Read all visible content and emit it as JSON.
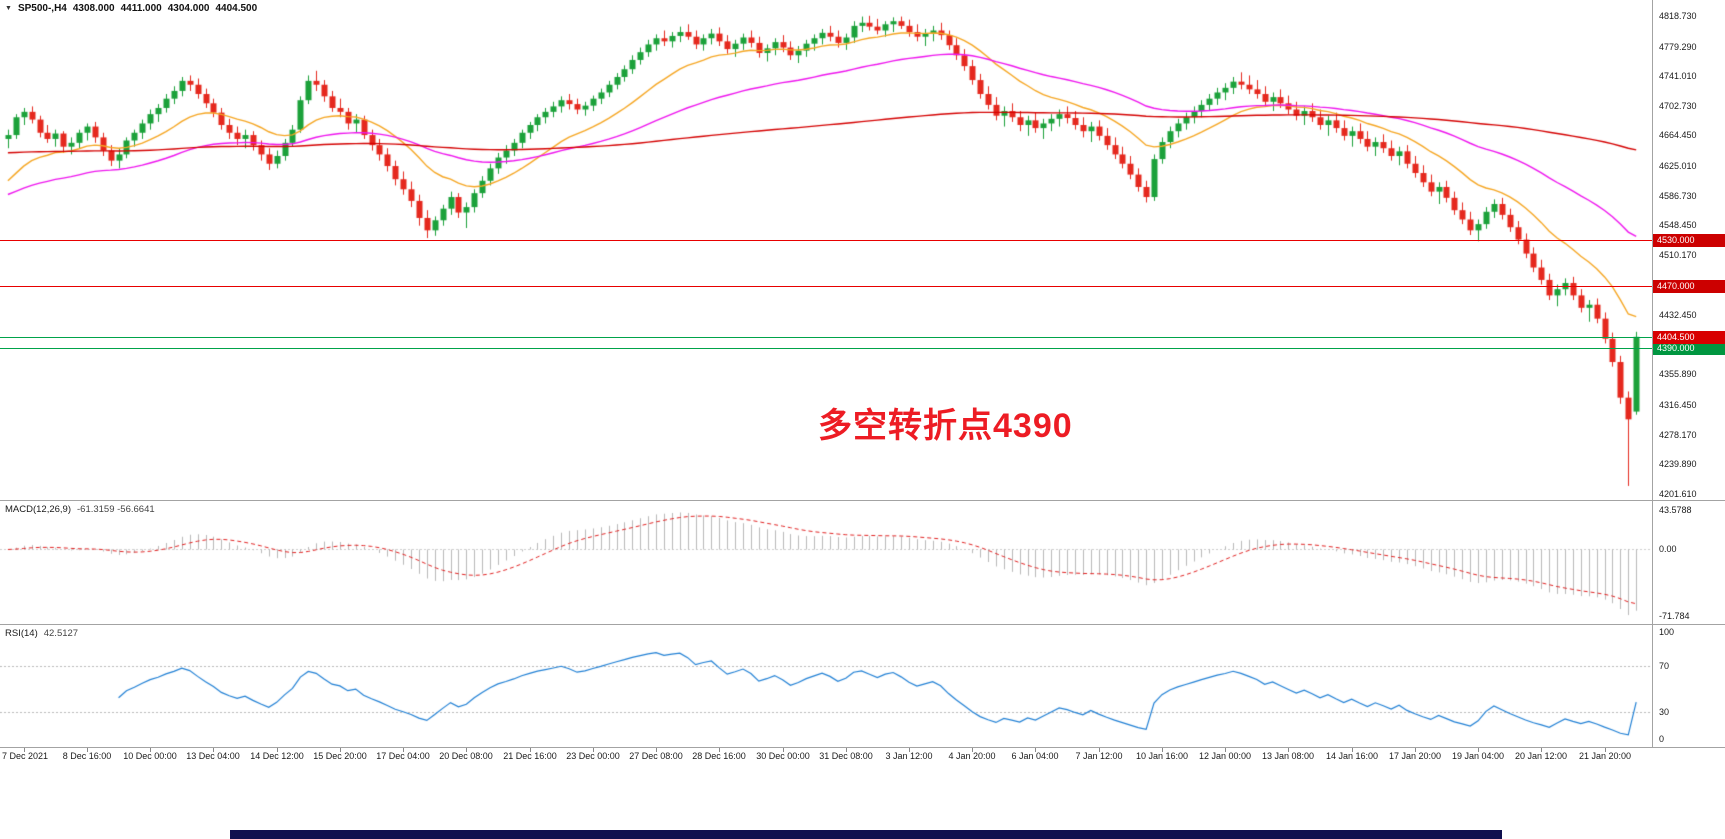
{
  "chart": {
    "title": {
      "dropdown_icon": "▼",
      "symbol_period": "SP500-,H4",
      "open": "4308.000",
      "high": "4411.000",
      "low": "4304.000",
      "close": "4404.500"
    },
    "annotation": {
      "text": "多空转折点4390",
      "color": "#ed1c24"
    },
    "colors": {
      "background": "#ffffff",
      "bull": "#1ba13a",
      "bear": "#e5281e",
      "axis_text": "#1a1a1a",
      "divider": "#a3a3a3",
      "taskbar": "#10104e"
    },
    "price_axis": {
      "labels": [
        "4818.730",
        "4779.290",
        "4741.010",
        "4702.730",
        "4664.450",
        "4625.010",
        "4586.730",
        "4548.450",
        "4510.170",
        "4432.450",
        "4355.890",
        "4316.450",
        "4278.170",
        "4239.890",
        "4201.610"
      ]
    },
    "hlines": [
      {
        "price": 4530.0,
        "label": "4530.000",
        "color": "#e80000",
        "tag_bg": "#cc0000"
      },
      {
        "price": 4470.0,
        "label": "4470.000",
        "color": "#e80000",
        "tag_bg": "#cc0000"
      },
      {
        "price": 4390.0,
        "label": "4390.000",
        "color": "#00a34a",
        "tag_bg": "#009640"
      }
    ],
    "bid_line": {
      "price": 4404.5,
      "label": "4404.500",
      "line_color": "#00a34a",
      "tag_bg": "#d80000"
    }
  },
  "chart_data": {
    "type": "candlestick",
    "symbol": "SP500-",
    "timeframe": "H4",
    "ohlc_display": {
      "open": 4308.0,
      "high": 4411.0,
      "low": 4304.0,
      "close": 4404.5
    },
    "ylim": [
      4201.61,
      4818.73
    ],
    "x_labels": [
      "7 Dec 2021",
      "8 Dec 16:00",
      "10 Dec 00:00",
      "13 Dec 04:00",
      "14 Dec 12:00",
      "15 Dec 20:00",
      "17 Dec 04:00",
      "20 Dec 08:00",
      "21 Dec 16:00",
      "23 Dec 00:00",
      "27 Dec 08:00",
      "28 Dec 16:00",
      "30 Dec 00:00",
      "31 Dec 08:00",
      "3 Jan 12:00",
      "4 Jan 20:00",
      "6 Jan 04:00",
      "7 Jan 12:00",
      "10 Jan 16:00",
      "12 Jan 00:00",
      "13 Jan 08:00",
      "14 Jan 16:00",
      "17 Jan 20:00",
      "19 Jan 04:00",
      "20 Jan 12:00",
      "21 Jan 20:00"
    ],
    "candles": [
      [
        4660,
        4672,
        4648,
        4665
      ],
      [
        4665,
        4692,
        4660,
        4688
      ],
      [
        4688,
        4700,
        4678,
        4695
      ],
      [
        4695,
        4702,
        4680,
        4685
      ],
      [
        4685,
        4690,
        4662,
        4668
      ],
      [
        4668,
        4678,
        4655,
        4660
      ],
      [
        4660,
        4672,
        4650,
        4667
      ],
      [
        4667,
        4670,
        4642,
        4650
      ],
      [
        4650,
        4662,
        4640,
        4655
      ],
      [
        4655,
        4672,
        4648,
        4668
      ],
      [
        4668,
        4680,
        4658,
        4676
      ],
      [
        4676,
        4682,
        4655,
        4662
      ],
      [
        4662,
        4668,
        4638,
        4645
      ],
      [
        4645,
        4652,
        4625,
        4632
      ],
      [
        4632,
        4648,
        4622,
        4640
      ],
      [
        4640,
        4662,
        4635,
        4658
      ],
      [
        4658,
        4672,
        4650,
        4668
      ],
      [
        4668,
        4685,
        4660,
        4680
      ],
      [
        4680,
        4698,
        4672,
        4692
      ],
      [
        4692,
        4705,
        4682,
        4700
      ],
      [
        4700,
        4718,
        4694,
        4712
      ],
      [
        4712,
        4728,
        4705,
        4722
      ],
      [
        4722,
        4740,
        4715,
        4735
      ],
      [
        4735,
        4742,
        4722,
        4730
      ],
      [
        4730,
        4738,
        4712,
        4718
      ],
      [
        4718,
        4725,
        4700,
        4706
      ],
      [
        4706,
        4712,
        4688,
        4694
      ],
      [
        4694,
        4700,
        4672,
        4678
      ],
      [
        4678,
        4686,
        4660,
        4668
      ],
      [
        4668,
        4676,
        4652,
        4660
      ],
      [
        4660,
        4672,
        4648,
        4665
      ],
      [
        4665,
        4670,
        4645,
        4652
      ],
      [
        4652,
        4658,
        4632,
        4640
      ],
      [
        4640,
        4648,
        4620,
        4628
      ],
      [
        4628,
        4645,
        4622,
        4638
      ],
      [
        4638,
        4660,
        4632,
        4655
      ],
      [
        4655,
        4678,
        4650,
        4672
      ],
      [
        4672,
        4715,
        4668,
        4710
      ],
      [
        4710,
        4742,
        4705,
        4735
      ],
      [
        4735,
        4748,
        4722,
        4730
      ],
      [
        4730,
        4736,
        4708,
        4715
      ],
      [
        4715,
        4722,
        4695,
        4700
      ],
      [
        4700,
        4712,
        4688,
        4695
      ],
      [
        4695,
        4700,
        4672,
        4680
      ],
      [
        4680,
        4692,
        4668,
        4685
      ],
      [
        4685,
        4690,
        4660,
        4665
      ],
      [
        4665,
        4672,
        4645,
        4652
      ],
      [
        4652,
        4660,
        4632,
        4640
      ],
      [
        4640,
        4648,
        4618,
        4625
      ],
      [
        4625,
        4632,
        4600,
        4608
      ],
      [
        4608,
        4618,
        4588,
        4595
      ],
      [
        4595,
        4605,
        4572,
        4580
      ],
      [
        4580,
        4588,
        4548,
        4558
      ],
      [
        4558,
        4568,
        4532,
        4542
      ],
      [
        4542,
        4560,
        4535,
        4555
      ],
      [
        4555,
        4575,
        4548,
        4570
      ],
      [
        4570,
        4592,
        4562,
        4585
      ],
      [
        4585,
        4590,
        4558,
        4565
      ],
      [
        4565,
        4578,
        4545,
        4572
      ],
      [
        4572,
        4595,
        4565,
        4590
      ],
      [
        4590,
        4612,
        4584,
        4606
      ],
      [
        4606,
        4628,
        4600,
        4622
      ],
      [
        4622,
        4642,
        4615,
        4636
      ],
      [
        4636,
        4652,
        4628,
        4645
      ],
      [
        4645,
        4660,
        4638,
        4655
      ],
      [
        4655,
        4672,
        4648,
        4668
      ],
      [
        4668,
        4682,
        4660,
        4678
      ],
      [
        4678,
        4692,
        4670,
        4688
      ],
      [
        4688,
        4700,
        4680,
        4695
      ],
      [
        4695,
        4708,
        4688,
        4702
      ],
      [
        4702,
        4715,
        4694,
        4710
      ],
      [
        4710,
        4718,
        4698,
        4705
      ],
      [
        4705,
        4712,
        4692,
        4698
      ],
      [
        4698,
        4708,
        4690,
        4703
      ],
      [
        4703,
        4716,
        4696,
        4712
      ],
      [
        4712,
        4725,
        4705,
        4720
      ],
      [
        4720,
        4735,
        4714,
        4730
      ],
      [
        4730,
        4745,
        4724,
        4740
      ],
      [
        4740,
        4755,
        4734,
        4750
      ],
      [
        4750,
        4768,
        4744,
        4762
      ],
      [
        4762,
        4778,
        4756,
        4772
      ],
      [
        4772,
        4788,
        4766,
        4782
      ],
      [
        4782,
        4795,
        4774,
        4790
      ],
      [
        4790,
        4800,
        4780,
        4786
      ],
      [
        4786,
        4798,
        4778,
        4793
      ],
      [
        4793,
        4805,
        4785,
        4798
      ],
      [
        4798,
        4808,
        4788,
        4792
      ],
      [
        4792,
        4800,
        4776,
        4782
      ],
      [
        4782,
        4795,
        4774,
        4790
      ],
      [
        4790,
        4802,
        4782,
        4796
      ],
      [
        4796,
        4804,
        4780,
        4786
      ],
      [
        4786,
        4794,
        4770,
        4776
      ],
      [
        4776,
        4788,
        4766,
        4783
      ],
      [
        4783,
        4796,
        4775,
        4791
      ],
      [
        4791,
        4800,
        4778,
        4784
      ],
      [
        4784,
        4792,
        4765,
        4771
      ],
      [
        4771,
        4782,
        4760,
        4777
      ],
      [
        4777,
        4790,
        4768,
        4785
      ],
      [
        4785,
        4794,
        4772,
        4778
      ],
      [
        4778,
        4786,
        4762,
        4768
      ],
      [
        4768,
        4780,
        4758,
        4774
      ],
      [
        4774,
        4788,
        4766,
        4783
      ],
      [
        4783,
        4795,
        4774,
        4790
      ],
      [
        4790,
        4802,
        4782,
        4797
      ],
      [
        4797,
        4806,
        4786,
        4792
      ],
      [
        4792,
        4800,
        4778,
        4784
      ],
      [
        4784,
        4796,
        4775,
        4791
      ],
      [
        4791,
        4812,
        4784,
        4806
      ],
      [
        4806,
        4818,
        4798,
        4810
      ],
      [
        4810,
        4819,
        4800,
        4805
      ],
      [
        4805,
        4815,
        4795,
        4800
      ],
      [
        4800,
        4812,
        4792,
        4808
      ],
      [
        4808,
        4817,
        4798,
        4812
      ],
      [
        4812,
        4818,
        4802,
        4806
      ],
      [
        4806,
        4814,
        4792,
        4798
      ],
      [
        4798,
        4808,
        4786,
        4792
      ],
      [
        4792,
        4802,
        4780,
        4796
      ],
      [
        4796,
        4806,
        4786,
        4800
      ],
      [
        4800,
        4810,
        4788,
        4794
      ],
      [
        4794,
        4800,
        4775,
        4781
      ],
      [
        4781,
        4790,
        4762,
        4768
      ],
      [
        4768,
        4776,
        4748,
        4754
      ],
      [
        4754,
        4762,
        4730,
        4736
      ],
      [
        4736,
        4744,
        4712,
        4718
      ],
      [
        4718,
        4728,
        4698,
        4704
      ],
      [
        4704,
        4714,
        4684,
        4690
      ],
      [
        4690,
        4702,
        4676,
        4696
      ],
      [
        4696,
        4706,
        4682,
        4688
      ],
      [
        4688,
        4696,
        4670,
        4678
      ],
      [
        4678,
        4690,
        4664,
        4684
      ],
      [
        4684,
        4694,
        4668,
        4674
      ],
      [
        4674,
        4686,
        4660,
        4680
      ],
      [
        4680,
        4692,
        4670,
        4686
      ],
      [
        4686,
        4698,
        4676,
        4692
      ],
      [
        4692,
        4702,
        4680,
        4687
      ],
      [
        4687,
        4696,
        4672,
        4678
      ],
      [
        4678,
        4688,
        4662,
        4670
      ],
      [
        4670,
        4682,
        4656,
        4676
      ],
      [
        4676,
        4684,
        4658,
        4664
      ],
      [
        4664,
        4674,
        4646,
        4652
      ],
      [
        4652,
        4662,
        4634,
        4640
      ],
      [
        4640,
        4650,
        4622,
        4628
      ],
      [
        4628,
        4638,
        4608,
        4614
      ],
      [
        4614,
        4622,
        4592,
        4598
      ],
      [
        4598,
        4606,
        4578,
        4585
      ],
      [
        4585,
        4640,
        4580,
        4634
      ],
      [
        4634,
        4662,
        4628,
        4656
      ],
      [
        4656,
        4676,
        4648,
        4670
      ],
      [
        4670,
        4686,
        4662,
        4680
      ],
      [
        4680,
        4694,
        4672,
        4688
      ],
      [
        4688,
        4702,
        4680,
        4696
      ],
      [
        4696,
        4710,
        4688,
        4704
      ],
      [
        4704,
        4718,
        4696,
        4712
      ],
      [
        4712,
        4726,
        4704,
        4720
      ],
      [
        4720,
        4732,
        4710,
        4726
      ],
      [
        4726,
        4740,
        4718,
        4734
      ],
      [
        4734,
        4746,
        4724,
        4730
      ],
      [
        4730,
        4742,
        4718,
        4724
      ],
      [
        4724,
        4736,
        4712,
        4718
      ],
      [
        4718,
        4728,
        4702,
        4708
      ],
      [
        4708,
        4720,
        4696,
        4714
      ],
      [
        4714,
        4724,
        4700,
        4706
      ],
      [
        4706,
        4716,
        4692,
        4698
      ],
      [
        4698,
        4708,
        4684,
        4690
      ],
      [
        4690,
        4702,
        4678,
        4696
      ],
      [
        4696,
        4706,
        4682,
        4688
      ],
      [
        4688,
        4698,
        4672,
        4678
      ],
      [
        4678,
        4690,
        4664,
        4684
      ],
      [
        4684,
        4694,
        4668,
        4674
      ],
      [
        4674,
        4684,
        4658,
        4664
      ],
      [
        4664,
        4676,
        4650,
        4670
      ],
      [
        4670,
        4680,
        4654,
        4660
      ],
      [
        4660,
        4670,
        4644,
        4650
      ],
      [
        4650,
        4662,
        4638,
        4656
      ],
      [
        4656,
        4666,
        4642,
        4648
      ],
      [
        4648,
        4658,
        4632,
        4638
      ],
      [
        4638,
        4650,
        4626,
        4644
      ],
      [
        4644,
        4652,
        4622,
        4628
      ],
      [
        4628,
        4638,
        4610,
        4616
      ],
      [
        4616,
        4626,
        4598,
        4604
      ],
      [
        4604,
        4614,
        4586,
        4592
      ],
      [
        4592,
        4604,
        4576,
        4598
      ],
      [
        4598,
        4606,
        4578,
        4584
      ],
      [
        4584,
        4592,
        4562,
        4568
      ],
      [
        4568,
        4578,
        4550,
        4556
      ],
      [
        4556,
        4566,
        4536,
        4542
      ],
      [
        4542,
        4556,
        4528,
        4550
      ],
      [
        4550,
        4572,
        4544,
        4566
      ],
      [
        4566,
        4582,
        4558,
        4576
      ],
      [
        4576,
        4584,
        4556,
        4562
      ],
      [
        4562,
        4570,
        4540,
        4546
      ],
      [
        4546,
        4554,
        4524,
        4530
      ],
      [
        4530,
        4538,
        4506,
        4512
      ],
      [
        4512,
        4520,
        4488,
        4494
      ],
      [
        4494,
        4504,
        4472,
        4478
      ],
      [
        4478,
        4486,
        4452,
        4458
      ],
      [
        4458,
        4472,
        4444,
        4466
      ],
      [
        4466,
        4480,
        4458,
        4474
      ],
      [
        4474,
        4482,
        4452,
        4458
      ],
      [
        4458,
        4466,
        4436,
        4442
      ],
      [
        4442,
        4452,
        4424,
        4446
      ],
      [
        4446,
        4454,
        4422,
        4428
      ],
      [
        4428,
        4436,
        4396,
        4402
      ],
      [
        4402,
        4410,
        4366,
        4372
      ],
      [
        4372,
        4380,
        4318,
        4326
      ],
      [
        4326,
        4334,
        4212,
        4298
      ],
      [
        4308,
        4411,
        4304,
        4404.5
      ]
    ],
    "moving_averages": [
      {
        "name": "ma-fast",
        "period": 16,
        "seed": 4598,
        "color": "#f5a623"
      },
      {
        "name": "ma-mid",
        "period": 48,
        "seed": 4585,
        "color": "#ee14ee"
      },
      {
        "name": "ma-slow",
        "period": 240,
        "seed": 4642,
        "color": "#d40000"
      }
    ],
    "macd": {
      "label": "MACD(12,26,9)",
      "values_text": "-61.3159 -56.6641",
      "fast": 12,
      "slow": 26,
      "signal": 9,
      "axis_labels": [
        "43.5788",
        "0.00",
        "-71.784"
      ],
      "hist_color": "#b8b8b8",
      "signal_color": "#e02020"
    },
    "rsi": {
      "label": "RSI(14)",
      "value_text": "42.5127",
      "period": 14,
      "levels": [
        70,
        30
      ],
      "axis_labels": [
        "100",
        "70",
        "30",
        "0"
      ],
      "color": "#1f7fd4",
      "level_color": "#b8b8b8"
    }
  }
}
